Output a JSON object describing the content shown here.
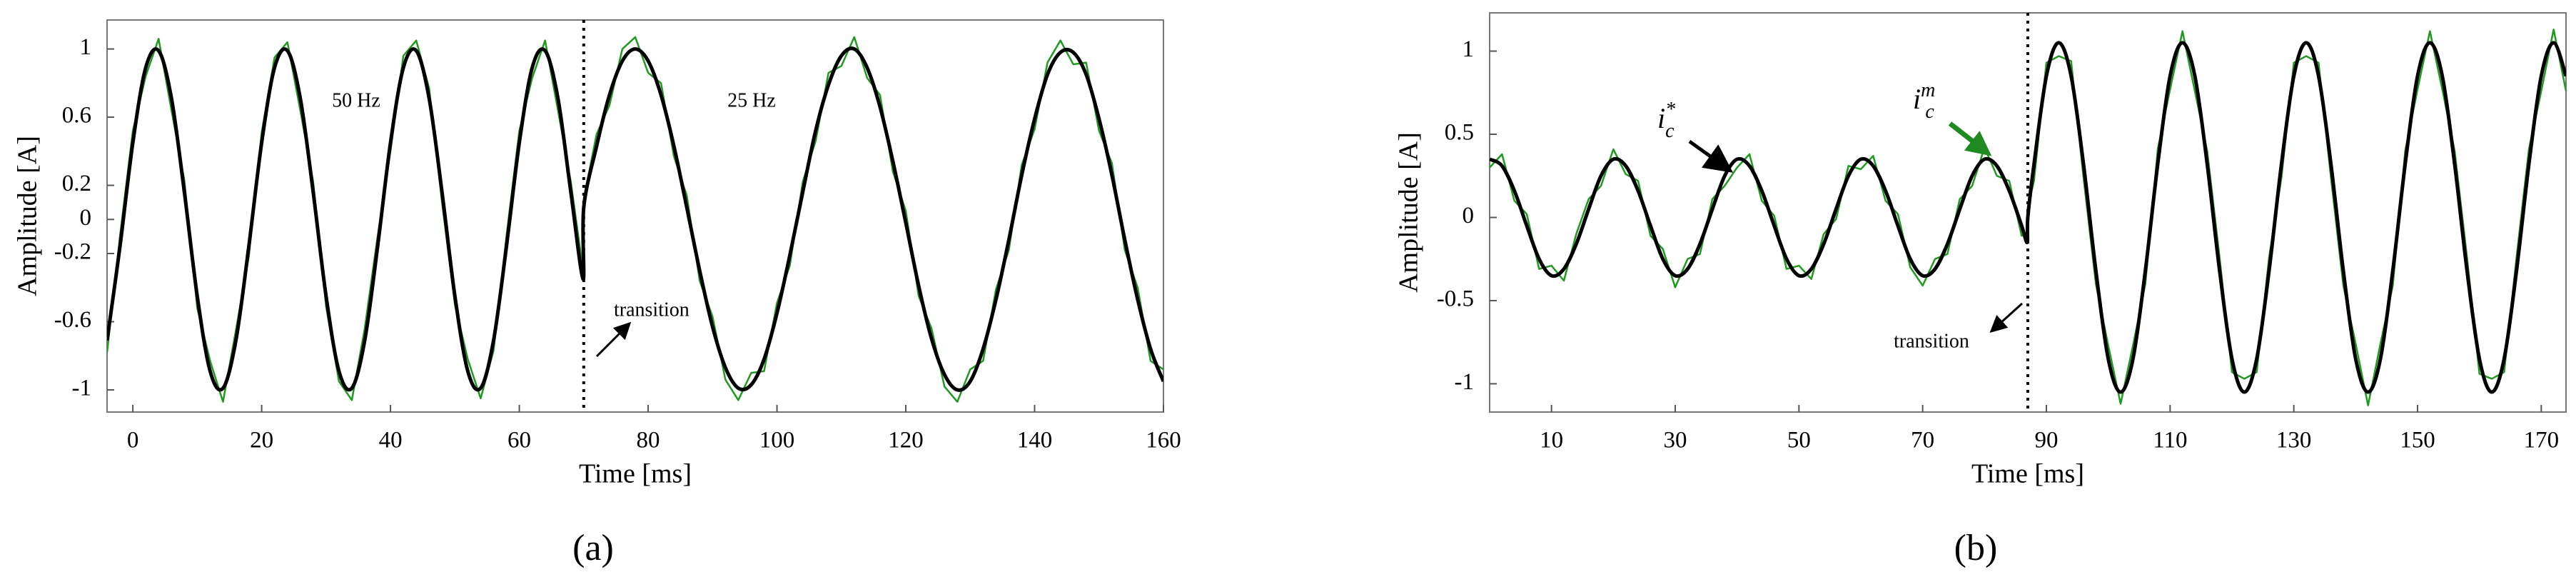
{
  "chart_data": [
    {
      "type": "line",
      "caption": "(a)",
      "x_label": "Time [ms]",
      "y_label": "Amplitude [A]",
      "xlim": [
        -4,
        160
      ],
      "xticks": [
        0,
        20,
        40,
        60,
        80,
        100,
        120,
        140,
        160
      ],
      "ylim": [
        -1.13,
        1.17
      ],
      "yticks": [
        -1,
        -0.6,
        -0.2,
        0,
        0.2,
        0.6,
        1
      ],
      "transition_x": 70,
      "annotations": [
        "50 Hz",
        "25 Hz",
        "transition"
      ],
      "x": [
        -4,
        -2,
        0,
        2,
        4,
        6,
        8,
        10,
        12,
        14,
        16,
        18,
        20,
        22,
        24,
        26,
        28,
        30,
        32,
        34,
        36,
        38,
        40,
        42,
        44,
        46,
        48,
        50,
        52,
        54,
        56,
        58,
        60,
        62,
        64,
        66,
        68,
        69.9,
        70,
        72,
        74,
        76,
        78,
        80,
        82,
        84,
        86,
        88,
        90,
        92,
        94,
        96,
        98,
        100,
        102,
        104,
        106,
        108,
        110,
        112,
        114,
        116,
        118,
        120,
        122,
        124,
        126,
        128,
        130,
        132,
        134,
        136,
        138,
        140,
        142,
        144,
        146,
        148,
        150,
        152,
        154,
        156,
        158,
        160
      ],
      "series": [
        {
          "color": "#1f9a1f",
          "values": [
            -0.78,
            -0.1,
            0.52,
            0.84,
            1.06,
            0.64,
            0.23,
            -0.52,
            -0.83,
            -1.07,
            -0.65,
            -0.22,
            0.51,
            0.95,
            1.04,
            0.64,
            0.22,
            -0.51,
            -0.95,
            -1.06,
            -0.64,
            -0.1,
            0.4,
            0.96,
            1.05,
            0.77,
            0.1,
            -0.5,
            -0.82,
            -1.05,
            -0.77,
            -0.1,
            0.52,
            0.83,
            1.05,
            0.64,
            0.22,
            -0.3,
            0.12,
            0.5,
            0.67,
            1.0,
            1.07,
            0.86,
            0.8,
            0.37,
            0.14,
            -0.36,
            -0.57,
            -0.94,
            -1.06,
            -0.9,
            -0.89,
            -0.49,
            -0.27,
            0.22,
            0.46,
            0.86,
            0.9,
            1.07,
            0.83,
            0.73,
            0.28,
            0.05,
            -0.45,
            -0.64,
            -0.98,
            -1.07,
            -0.88,
            -0.83,
            -0.41,
            -0.18,
            0.32,
            0.53,
            0.92,
            1.05,
            0.91,
            0.92,
            0.52,
            0.33,
            -0.18,
            -0.4,
            -0.83,
            -0.88
          ]
        },
        {
          "color": "#000000",
          "smooth": true,
          "values": [
            -0.71,
            -0.16,
            0.45,
            0.89,
            0.99,
            0.71,
            0.16,
            -0.45,
            -0.89,
            -0.99,
            -0.71,
            -0.16,
            0.45,
            0.89,
            0.99,
            0.71,
            0.16,
            -0.45,
            -0.89,
            -0.99,
            -0.71,
            -0.16,
            0.45,
            0.89,
            0.99,
            0.71,
            0.16,
            -0.45,
            -0.89,
            -0.99,
            -0.71,
            -0.16,
            0.45,
            0.89,
            0.99,
            0.71,
            0.16,
            -0.35,
            0.07,
            0.43,
            0.73,
            0.93,
            1.0,
            0.93,
            0.73,
            0.43,
            0.07,
            -0.3,
            -0.63,
            -0.87,
            -0.99,
            -0.97,
            -0.82,
            -0.55,
            -0.21,
            0.16,
            0.52,
            0.79,
            0.96,
            1.0,
            0.89,
            0.66,
            0.34,
            -0.02,
            -0.39,
            -0.7,
            -0.91,
            -1.0,
            -0.95,
            -0.76,
            -0.47,
            -0.12,
            0.26,
            0.59,
            0.85,
            0.98,
            0.98,
            0.85,
            0.59,
            0.26,
            -0.12,
            -0.47,
            -0.76,
            -0.95
          ]
        }
      ]
    },
    {
      "type": "line",
      "caption": "(b)",
      "x_label": "Time [ms]",
      "y_label": "Amplitude [A]",
      "xlim": [
        0,
        174
      ],
      "xticks": [
        10,
        30,
        50,
        70,
        90,
        110,
        130,
        150,
        170
      ],
      "ylim": [
        -1.17,
        1.23
      ],
      "yticks": [
        -1,
        -0.5,
        0,
        0.5,
        1
      ],
      "transition_x": 87,
      "annotations": [
        "transition"
      ],
      "x": [
        0,
        2,
        4,
        6,
        8,
        10,
        12,
        14,
        16,
        18,
        20,
        22,
        24,
        26,
        28,
        30,
        32,
        34,
        36,
        38,
        40,
        42,
        44,
        46,
        48,
        50,
        52,
        54,
        56,
        58,
        60,
        62,
        64,
        66,
        68,
        70,
        72,
        74,
        76,
        78,
        80,
        82,
        84,
        86,
        86.9,
        87,
        88,
        90,
        92,
        94,
        96,
        98,
        100,
        102,
        104,
        106,
        108,
        110,
        112,
        114,
        116,
        118,
        120,
        122,
        124,
        126,
        128,
        130,
        132,
        134,
        136,
        138,
        140,
        142,
        144,
        146,
        148,
        150,
        152,
        154,
        156,
        158,
        160,
        162,
        164,
        166,
        168,
        170,
        172,
        174
      ],
      "series": [
        {
          "color": "#1f9a1f",
          "label": {
            "base": "i",
            "sub": "c",
            "sup": "m"
          },
          "values": [
            0.3,
            0.38,
            0.1,
            0.02,
            -0.31,
            -0.29,
            -0.38,
            -0.1,
            0.11,
            0.19,
            0.41,
            0.26,
            0.22,
            -0.11,
            -0.19,
            -0.42,
            -0.25,
            -0.22,
            0.11,
            0.19,
            0.3,
            0.38,
            0.1,
            0.01,
            -0.31,
            -0.29,
            -0.37,
            -0.1,
            -0.01,
            0.31,
            0.29,
            0.37,
            0.1,
            0.02,
            -0.3,
            -0.41,
            -0.25,
            -0.22,
            0.11,
            0.19,
            0.42,
            0.25,
            0.22,
            -0.11,
            -0.1,
            0.06,
            0.22,
            0.93,
            0.97,
            0.94,
            0.24,
            -0.4,
            -0.77,
            -1.12,
            -0.77,
            -0.4,
            0.41,
            0.77,
            1.12,
            0.76,
            0.4,
            -0.24,
            -0.93,
            -0.97,
            -0.93,
            -0.24,
            0.24,
            0.93,
            0.97,
            0.93,
            0.24,
            -0.41,
            -0.76,
            -1.13,
            -0.76,
            -0.41,
            0.4,
            0.77,
            1.12,
            0.77,
            0.4,
            -0.24,
            -0.94,
            -0.97,
            -0.93,
            -0.24,
            0.41,
            0.76,
            1.13,
            0.76
          ]
        },
        {
          "color": "#000000",
          "smooth": true,
          "label": {
            "base": "i",
            "sub": "c",
            "sup": "*"
          },
          "values": [
            0.35,
            0.31,
            0.16,
            -0.05,
            -0.25,
            -0.35,
            -0.31,
            -0.16,
            0.05,
            0.25,
            0.35,
            0.31,
            0.16,
            -0.05,
            -0.25,
            -0.35,
            -0.31,
            -0.16,
            0.05,
            0.25,
            0.35,
            0.31,
            0.16,
            -0.05,
            -0.25,
            -0.35,
            -0.31,
            -0.16,
            0.05,
            0.25,
            0.35,
            0.31,
            0.16,
            -0.05,
            -0.25,
            -0.35,
            -0.31,
            -0.16,
            0.05,
            0.25,
            0.35,
            0.31,
            0.16,
            -0.05,
            -0.15,
            0.0,
            0.32,
            0.85,
            1.05,
            0.85,
            0.32,
            -0.32,
            -0.85,
            -1.05,
            -0.85,
            -0.32,
            0.32,
            0.85,
            1.05,
            0.85,
            0.32,
            -0.32,
            -0.85,
            -1.05,
            -0.85,
            -0.32,
            0.32,
            0.85,
            1.05,
            0.85,
            0.32,
            -0.32,
            -0.85,
            -1.05,
            -0.85,
            -0.32,
            0.32,
            0.85,
            1.05,
            0.85,
            0.32,
            -0.32,
            -0.85,
            -1.05,
            -0.85,
            -0.32,
            0.32,
            0.85,
            1.05,
            0.85
          ]
        }
      ]
    }
  ]
}
